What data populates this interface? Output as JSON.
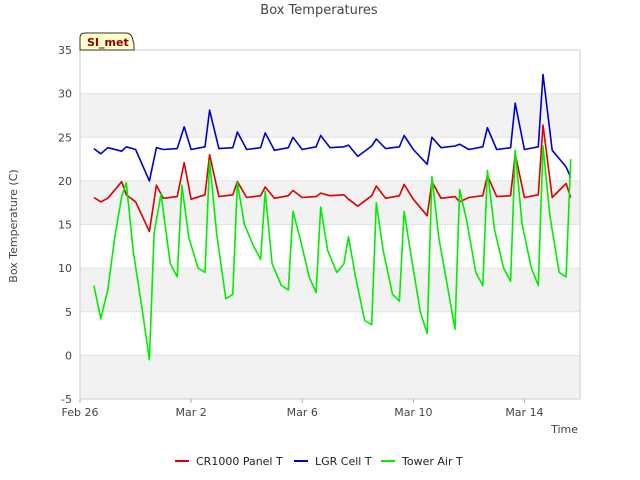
{
  "chart_data": {
    "type": "line",
    "title": "Box Temperatures",
    "xlabel": "Time",
    "ylabel": "Box Temperature (C)",
    "site_label": "SI_met",
    "xlim": [
      "2022-02-26",
      "2022-03-16"
    ],
    "ylim": [
      -5,
      35
    ],
    "y_ticks": [
      -5,
      0,
      5,
      10,
      15,
      20,
      25,
      30,
      35
    ],
    "x_ticks": [
      {
        "date": "2022-02-26",
        "label": "Feb 26"
      },
      {
        "date": "2022-03-02",
        "label": "Mar 2"
      },
      {
        "date": "2022-03-06",
        "label": "Mar 6"
      },
      {
        "date": "2022-03-10",
        "label": "Mar 10"
      },
      {
        "date": "2022-03-14",
        "label": "Mar 14"
      }
    ],
    "grid": "horizontal bands",
    "legend_position": "bottom",
    "series": [
      {
        "name": "CR1000 Panel T",
        "color": "#dd0000",
        "x": [
          "2022-02-26T12:00",
          "2022-02-26T18:00",
          "2022-02-27T00:00",
          "2022-02-27T12:00",
          "2022-02-27T16:00",
          "2022-02-28T00:00",
          "2022-02-28T12:00",
          "2022-02-28T18:00",
          "2022-03-01T00:00",
          "2022-03-01T12:00",
          "2022-03-01T18:00",
          "2022-03-02T00:00",
          "2022-03-02T12:00",
          "2022-03-02T16:00",
          "2022-03-03T00:00",
          "2022-03-03T12:00",
          "2022-03-03T16:00",
          "2022-03-04T00:00",
          "2022-03-04T12:00",
          "2022-03-04T16:00",
          "2022-03-05T00:00",
          "2022-03-05T12:00",
          "2022-03-05T16:00",
          "2022-03-06T00:00",
          "2022-03-06T12:00",
          "2022-03-06T16:00",
          "2022-03-07T00:00",
          "2022-03-07T12:00",
          "2022-03-07T16:00",
          "2022-03-08T00:00",
          "2022-03-08T12:00",
          "2022-03-08T16:00",
          "2022-03-09T00:00",
          "2022-03-09T12:00",
          "2022-03-09T16:00",
          "2022-03-10T00:00",
          "2022-03-10T12:00",
          "2022-03-10T16:00",
          "2022-03-11T00:00",
          "2022-03-11T12:00",
          "2022-03-11T16:00",
          "2022-03-12T00:00",
          "2022-03-12T12:00",
          "2022-03-12T16:00",
          "2022-03-13T00:00",
          "2022-03-13T12:00",
          "2022-03-13T16:00",
          "2022-03-14T00:00",
          "2022-03-14T12:00",
          "2022-03-14T16:00",
          "2022-03-15T00:00",
          "2022-03-15T12:00",
          "2022-03-15T16:00"
        ],
        "y": [
          18.1,
          17.6,
          18.0,
          19.9,
          18.4,
          17.6,
          14.2,
          19.5,
          18.0,
          18.2,
          22.1,
          17.9,
          18.4,
          23.0,
          18.2,
          18.4,
          19.9,
          18.1,
          18.3,
          19.3,
          18.0,
          18.3,
          18.9,
          18.1,
          18.2,
          18.6,
          18.3,
          18.4,
          17.9,
          17.1,
          18.3,
          19.4,
          18.0,
          18.3,
          19.6,
          17.9,
          16.0,
          19.9,
          18.0,
          18.2,
          17.6,
          18.1,
          18.3,
          20.6,
          18.2,
          18.3,
          23.1,
          18.1,
          18.4,
          26.4,
          18.1,
          19.7,
          18.1
        ]
      },
      {
        "name": "LGR Cell T",
        "color": "#0000cc",
        "x": [
          "2022-02-26T12:00",
          "2022-02-26T18:00",
          "2022-02-27T00:00",
          "2022-02-27T12:00",
          "2022-02-27T16:00",
          "2022-02-28T00:00",
          "2022-02-28T12:00",
          "2022-02-28T18:00",
          "2022-03-01T00:00",
          "2022-03-01T12:00",
          "2022-03-01T18:00",
          "2022-03-02T00:00",
          "2022-03-02T12:00",
          "2022-03-02T16:00",
          "2022-03-03T00:00",
          "2022-03-03T12:00",
          "2022-03-03T16:00",
          "2022-03-04T00:00",
          "2022-03-04T12:00",
          "2022-03-04T16:00",
          "2022-03-05T00:00",
          "2022-03-05T12:00",
          "2022-03-05T16:00",
          "2022-03-06T00:00",
          "2022-03-06T12:00",
          "2022-03-06T16:00",
          "2022-03-07T00:00",
          "2022-03-07T12:00",
          "2022-03-07T16:00",
          "2022-03-08T00:00",
          "2022-03-08T12:00",
          "2022-03-08T16:00",
          "2022-03-09T00:00",
          "2022-03-09T12:00",
          "2022-03-09T16:00",
          "2022-03-10T00:00",
          "2022-03-10T12:00",
          "2022-03-10T16:00",
          "2022-03-11T00:00",
          "2022-03-11T12:00",
          "2022-03-11T16:00",
          "2022-03-12T00:00",
          "2022-03-12T12:00",
          "2022-03-12T16:00",
          "2022-03-13T00:00",
          "2022-03-13T12:00",
          "2022-03-13T16:00",
          "2022-03-14T00:00",
          "2022-03-14T12:00",
          "2022-03-14T16:00",
          "2022-03-15T00:00",
          "2022-03-15T12:00",
          "2022-03-15T16:00"
        ],
        "y": [
          23.7,
          23.1,
          23.8,
          23.4,
          23.9,
          23.6,
          20.0,
          23.8,
          23.6,
          23.7,
          26.2,
          23.6,
          23.9,
          28.1,
          23.7,
          23.8,
          25.6,
          23.6,
          23.8,
          25.5,
          23.5,
          23.8,
          25.0,
          23.6,
          23.9,
          25.2,
          23.8,
          23.9,
          24.1,
          22.8,
          24.0,
          24.8,
          23.7,
          23.9,
          25.2,
          23.6,
          21.9,
          25.0,
          23.8,
          24.0,
          24.2,
          23.6,
          23.9,
          26.1,
          23.6,
          23.8,
          28.9,
          23.6,
          23.9,
          32.2,
          23.5,
          21.6,
          20.4
        ]
      },
      {
        "name": "Tower Air T",
        "color": "#00ee00",
        "x": [
          "2022-02-26T12:00",
          "2022-02-26T18:00",
          "2022-02-27T00:00",
          "2022-02-27T06:00",
          "2022-02-27T12:00",
          "2022-02-27T16:00",
          "2022-02-27T22:00",
          "2022-02-28T06:00",
          "2022-02-28T12:00",
          "2022-02-28T16:00",
          "2022-02-28T22:00",
          "2022-03-01T06:00",
          "2022-03-01T12:00",
          "2022-03-01T16:00",
          "2022-03-01T22:00",
          "2022-03-02T06:00",
          "2022-03-02T12:00",
          "2022-03-02T16:00",
          "2022-03-02T22:00",
          "2022-03-03T06:00",
          "2022-03-03T12:00",
          "2022-03-03T16:00",
          "2022-03-03T22:00",
          "2022-03-04T06:00",
          "2022-03-04T12:00",
          "2022-03-04T16:00",
          "2022-03-04T22:00",
          "2022-03-05T06:00",
          "2022-03-05T12:00",
          "2022-03-05T16:00",
          "2022-03-05T22:00",
          "2022-03-06T06:00",
          "2022-03-06T12:00",
          "2022-03-06T16:00",
          "2022-03-06T22:00",
          "2022-03-07T06:00",
          "2022-03-07T12:00",
          "2022-03-07T16:00",
          "2022-03-07T22:00",
          "2022-03-08T06:00",
          "2022-03-08T12:00",
          "2022-03-08T16:00",
          "2022-03-08T22:00",
          "2022-03-09T06:00",
          "2022-03-09T12:00",
          "2022-03-09T16:00",
          "2022-03-09T22:00",
          "2022-03-10T06:00",
          "2022-03-10T12:00",
          "2022-03-10T16:00",
          "2022-03-10T22:00",
          "2022-03-11T06:00",
          "2022-03-11T12:00",
          "2022-03-11T16:00",
          "2022-03-11T22:00",
          "2022-03-12T06:00",
          "2022-03-12T12:00",
          "2022-03-12T16:00",
          "2022-03-12T22:00",
          "2022-03-13T06:00",
          "2022-03-13T12:00",
          "2022-03-13T16:00",
          "2022-03-13T22:00",
          "2022-03-14T06:00",
          "2022-03-14T12:00",
          "2022-03-14T16:00",
          "2022-03-14T22:00",
          "2022-03-15T06:00",
          "2022-03-15T12:00",
          "2022-03-15T16:00"
        ],
        "y": [
          8.0,
          4.2,
          7.5,
          13.5,
          18.2,
          19.8,
          12.0,
          5.0,
          -0.5,
          14.0,
          18.5,
          10.5,
          9.0,
          19.5,
          13.5,
          10.0,
          9.5,
          22.3,
          14.0,
          6.5,
          7.0,
          19.8,
          15.0,
          12.5,
          11.0,
          18.8,
          10.5,
          8.0,
          7.5,
          16.5,
          13.5,
          9.0,
          7.2,
          17.0,
          12.0,
          9.5,
          10.5,
          13.6,
          9.0,
          4.0,
          3.5,
          17.5,
          12.0,
          7.0,
          6.2,
          16.5,
          11.5,
          5.0,
          2.5,
          20.5,
          13.5,
          7.5,
          3.0,
          19.0,
          15.5,
          9.5,
          8.0,
          21.2,
          14.5,
          10.0,
          8.5,
          23.5,
          15.0,
          10.0,
          8.0,
          24.0,
          16.0,
          9.5,
          9.0,
          22.5
        ]
      }
    ]
  }
}
